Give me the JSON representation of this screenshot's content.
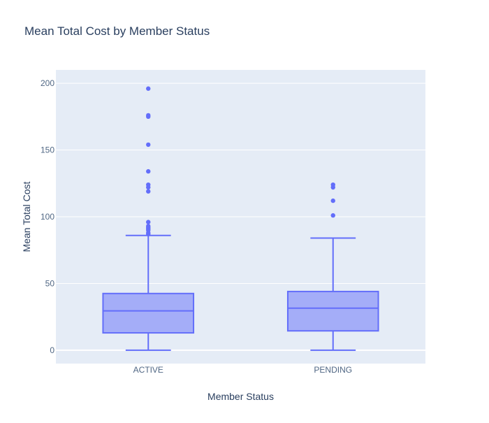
{
  "chart_data": {
    "type": "box",
    "title": "Mean Total Cost by Member Status",
    "xlabel": "Member Status",
    "ylabel": "Mean Total Cost",
    "categories": [
      "ACTIVE",
      "PENDING"
    ],
    "ylim": [
      -10,
      210
    ],
    "yticks": [
      0,
      50,
      100,
      150,
      200
    ],
    "grid": true,
    "boxes": [
      {
        "category": "ACTIVE",
        "lower_whisker": 0,
        "q1": 13,
        "median": 29.5,
        "q3": 42.5,
        "upper_whisker": 86,
        "outliers": [
          87,
          88,
          90,
          91,
          92,
          93,
          96,
          119,
          122,
          124,
          134,
          154,
          175,
          176,
          196
        ]
      },
      {
        "category": "PENDING",
        "lower_whisker": 0,
        "q1": 14.5,
        "median": 31.5,
        "q3": 44,
        "upper_whisker": 84,
        "outliers": [
          101,
          112,
          122,
          124
        ]
      }
    ],
    "colors": {
      "box_fill": "rgba(99,110,250,0.5)",
      "box_line": "#636efa",
      "plot_bg": "#e5ecf6",
      "grid": "#ffffff",
      "text": "#2a3f5f",
      "tick_text": "#506784"
    }
  }
}
